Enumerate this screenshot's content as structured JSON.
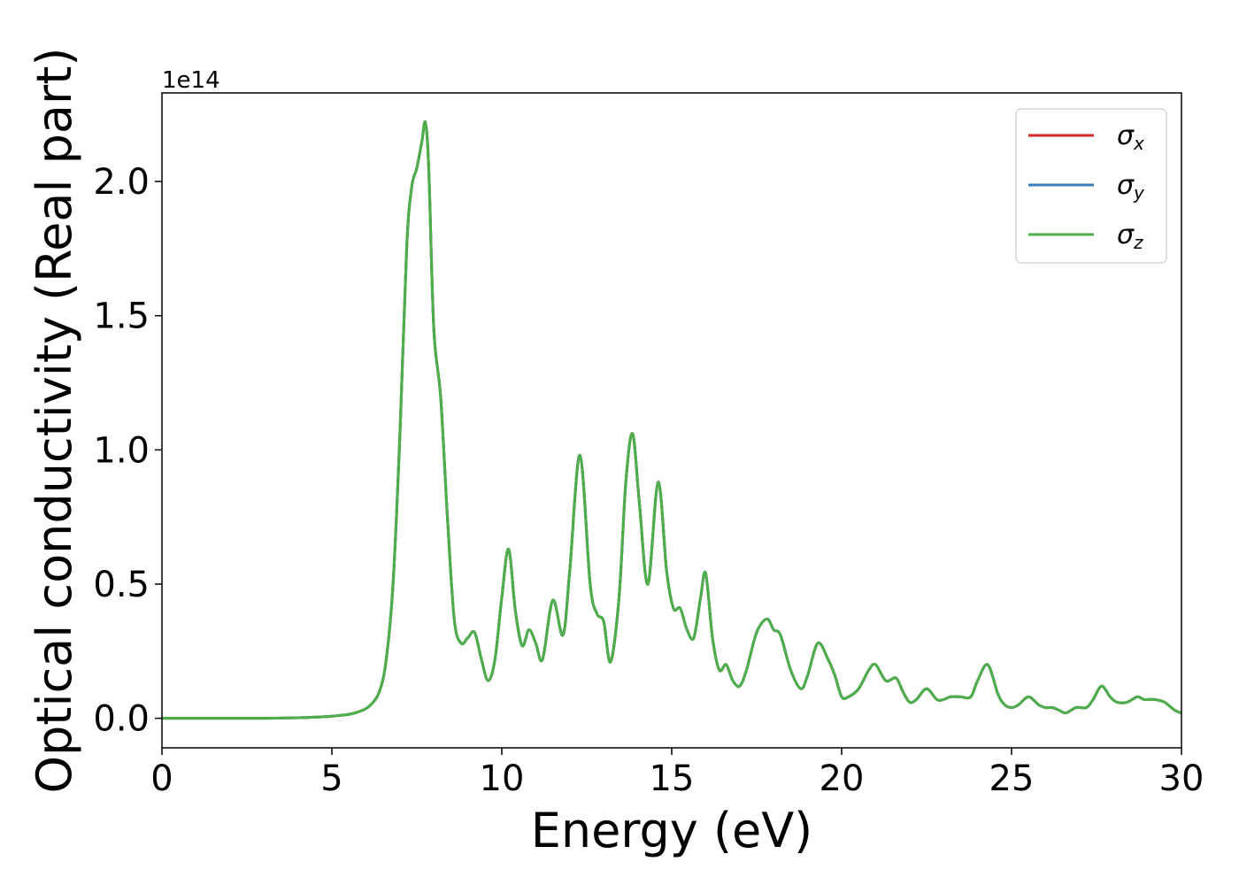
{
  "chart_data": {
    "type": "line",
    "xlabel": "Energy (eV)",
    "ylabel": "Optical conductivity (Real part)",
    "y_offset_label": "1e14",
    "xlim": [
      0,
      30
    ],
    "ylim": [
      -0.11,
      2.33
    ],
    "x_ticks": [
      0,
      5,
      10,
      15,
      20,
      25,
      30
    ],
    "x_tick_labels": [
      "0",
      "5",
      "10",
      "15",
      "20",
      "25",
      "30"
    ],
    "y_ticks": [
      0.0,
      0.5,
      1.0,
      1.5,
      2.0
    ],
    "y_tick_labels": [
      "0.0",
      "0.5",
      "1.0",
      "1.5",
      "2.0"
    ],
    "grid": false,
    "legend_position": "top-right",
    "x": [
      0,
      1,
      2,
      3,
      4,
      4.5,
      5,
      5.5,
      5.8,
      6.1,
      6.4,
      6.6,
      6.8,
      7.0,
      7.2,
      7.35,
      7.5,
      7.65,
      7.75,
      7.85,
      8.0,
      8.2,
      8.4,
      8.6,
      8.8,
      9.0,
      9.2,
      9.4,
      9.6,
      9.8,
      10.0,
      10.2,
      10.4,
      10.6,
      10.8,
      11.0,
      11.2,
      11.5,
      11.8,
      12.0,
      12.3,
      12.6,
      12.8,
      13.0,
      13.2,
      13.45,
      13.65,
      13.85,
      14.05,
      14.3,
      14.6,
      14.85,
      15.05,
      15.25,
      15.45,
      15.65,
      15.85,
      16.0,
      16.2,
      16.4,
      16.6,
      16.8,
      17.0,
      17.2,
      17.5,
      17.8,
      18.0,
      18.2,
      18.5,
      18.8,
      19.0,
      19.3,
      19.6,
      19.8,
      20.0,
      20.2,
      20.5,
      20.8,
      21.0,
      21.3,
      21.6,
      21.8,
      22.0,
      22.2,
      22.5,
      22.8,
      23.0,
      23.2,
      23.5,
      23.8,
      24.0,
      24.3,
      24.6,
      24.8,
      25.0,
      25.2,
      25.5,
      25.8,
      26.0,
      26.2,
      26.4,
      26.6,
      26.9,
      27.2,
      27.4,
      27.65,
      27.9,
      28.1,
      28.4,
      28.7,
      28.9,
      29.2,
      29.5,
      29.8,
      30
    ],
    "series": [
      {
        "name": "σx",
        "color": "#d62728",
        "values": [
          0,
          0,
          0,
          0,
          0.002,
          0.004,
          0.008,
          0.015,
          0.025,
          0.045,
          0.1,
          0.22,
          0.5,
          1.05,
          1.75,
          1.98,
          2.05,
          2.15,
          2.22,
          2.05,
          1.45,
          1.2,
          0.75,
          0.37,
          0.28,
          0.3,
          0.32,
          0.22,
          0.14,
          0.22,
          0.45,
          0.63,
          0.4,
          0.27,
          0.33,
          0.28,
          0.22,
          0.44,
          0.31,
          0.55,
          0.98,
          0.5,
          0.39,
          0.36,
          0.21,
          0.45,
          0.88,
          1.06,
          0.8,
          0.5,
          0.88,
          0.55,
          0.41,
          0.41,
          0.33,
          0.3,
          0.45,
          0.54,
          0.3,
          0.18,
          0.2,
          0.14,
          0.12,
          0.18,
          0.32,
          0.37,
          0.33,
          0.31,
          0.18,
          0.11,
          0.16,
          0.28,
          0.22,
          0.16,
          0.08,
          0.08,
          0.11,
          0.18,
          0.2,
          0.14,
          0.15,
          0.1,
          0.06,
          0.07,
          0.11,
          0.07,
          0.07,
          0.08,
          0.08,
          0.08,
          0.14,
          0.2,
          0.09,
          0.05,
          0.04,
          0.05,
          0.08,
          0.05,
          0.04,
          0.04,
          0.03,
          0.02,
          0.04,
          0.04,
          0.07,
          0.12,
          0.08,
          0.06,
          0.06,
          0.08,
          0.07,
          0.07,
          0.06,
          0.03,
          0.02
        ]
      },
      {
        "name": "σy",
        "color": "#377eb8",
        "values": [
          0,
          0,
          0,
          0,
          0.002,
          0.004,
          0.008,
          0.015,
          0.025,
          0.045,
          0.1,
          0.22,
          0.5,
          1.05,
          1.75,
          1.98,
          2.05,
          2.15,
          2.22,
          2.05,
          1.45,
          1.2,
          0.75,
          0.37,
          0.28,
          0.3,
          0.32,
          0.22,
          0.14,
          0.22,
          0.45,
          0.63,
          0.4,
          0.27,
          0.33,
          0.28,
          0.22,
          0.44,
          0.31,
          0.55,
          0.98,
          0.5,
          0.39,
          0.36,
          0.21,
          0.45,
          0.88,
          1.06,
          0.8,
          0.5,
          0.88,
          0.55,
          0.41,
          0.41,
          0.33,
          0.3,
          0.45,
          0.54,
          0.3,
          0.18,
          0.2,
          0.14,
          0.12,
          0.18,
          0.32,
          0.37,
          0.33,
          0.31,
          0.18,
          0.11,
          0.16,
          0.28,
          0.22,
          0.16,
          0.08,
          0.08,
          0.11,
          0.18,
          0.2,
          0.14,
          0.15,
          0.1,
          0.06,
          0.07,
          0.11,
          0.07,
          0.07,
          0.08,
          0.08,
          0.08,
          0.14,
          0.2,
          0.09,
          0.05,
          0.04,
          0.05,
          0.08,
          0.05,
          0.04,
          0.04,
          0.03,
          0.02,
          0.04,
          0.04,
          0.07,
          0.12,
          0.08,
          0.06,
          0.06,
          0.08,
          0.07,
          0.07,
          0.06,
          0.03,
          0.02
        ]
      },
      {
        "name": "σz",
        "color": "#4daf4a",
        "values": [
          0,
          0,
          0,
          0,
          0.002,
          0.004,
          0.008,
          0.015,
          0.025,
          0.045,
          0.1,
          0.22,
          0.5,
          1.05,
          1.75,
          1.98,
          2.05,
          2.15,
          2.22,
          2.05,
          1.45,
          1.2,
          0.75,
          0.37,
          0.28,
          0.3,
          0.32,
          0.22,
          0.14,
          0.22,
          0.45,
          0.63,
          0.4,
          0.27,
          0.33,
          0.28,
          0.22,
          0.44,
          0.31,
          0.55,
          0.98,
          0.5,
          0.39,
          0.36,
          0.21,
          0.45,
          0.88,
          1.06,
          0.8,
          0.5,
          0.88,
          0.55,
          0.41,
          0.41,
          0.33,
          0.3,
          0.45,
          0.54,
          0.3,
          0.18,
          0.2,
          0.14,
          0.12,
          0.18,
          0.32,
          0.37,
          0.33,
          0.31,
          0.18,
          0.11,
          0.16,
          0.28,
          0.22,
          0.16,
          0.08,
          0.08,
          0.11,
          0.18,
          0.2,
          0.14,
          0.15,
          0.1,
          0.06,
          0.07,
          0.11,
          0.07,
          0.07,
          0.08,
          0.08,
          0.08,
          0.14,
          0.2,
          0.09,
          0.05,
          0.04,
          0.05,
          0.08,
          0.05,
          0.04,
          0.04,
          0.03,
          0.02,
          0.04,
          0.04,
          0.07,
          0.12,
          0.08,
          0.06,
          0.06,
          0.08,
          0.07,
          0.07,
          0.06,
          0.03,
          0.02
        ]
      }
    ]
  }
}
